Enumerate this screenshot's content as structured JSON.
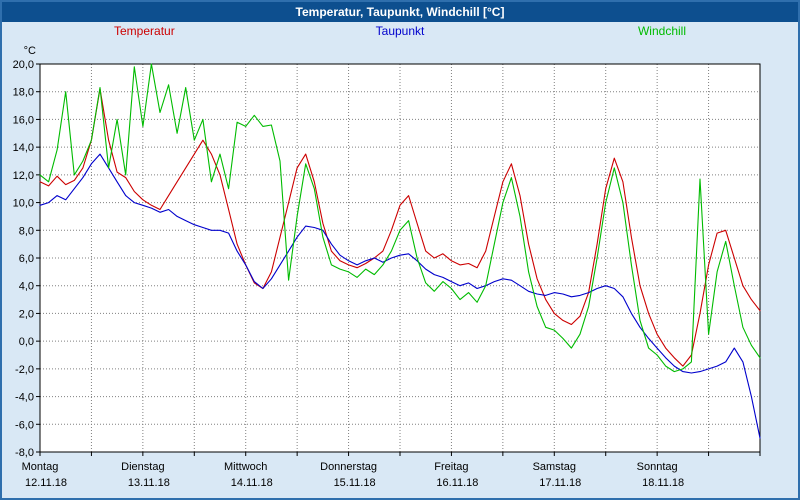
{
  "window": {
    "title": "Temperatur, Taupunkt, Windchill [°C]"
  },
  "chart_data": {
    "type": "line",
    "title": "Temperatur, Taupunkt, Windchill [°C]",
    "ylabel": "°C",
    "xlabel": "",
    "ylim": [
      -8,
      20
    ],
    "y_tick_step": 2,
    "y_tick_labels": [
      "20,0",
      "18,0",
      "16,0",
      "14,0",
      "12,0",
      "10,0",
      "8,0",
      "6,0",
      "4,0",
      "2,0",
      "0,0",
      "-2,0",
      "-4,0",
      "-6,0",
      "-8,0"
    ],
    "x_hours_total": 168,
    "x_gridline_hours": 12,
    "x_start": 0,
    "x_step": 2,
    "grid": "dotted",
    "legend_position": "top",
    "background_color": "#d9e8f5",
    "titlebar_color": "#0d4f8f",
    "days": [
      {
        "label": "Montag",
        "date": "12.11.18"
      },
      {
        "label": "Dienstag",
        "date": "13.11.18"
      },
      {
        "label": "Mittwoch",
        "date": "14.11.18"
      },
      {
        "label": "Donnerstag",
        "date": "15.11.18"
      },
      {
        "label": "Freitag",
        "date": "16.11.18"
      },
      {
        "label": "Samstag",
        "date": "17.11.18"
      },
      {
        "label": "Sonntag",
        "date": "18.11.18"
      }
    ],
    "series": [
      {
        "name": "Temperatur",
        "color": "#cc0000",
        "values": [
          11.5,
          11.2,
          11.9,
          11.3,
          11.6,
          12.5,
          14.5,
          18.2,
          14.5,
          12.2,
          11.8,
          10.8,
          10.2,
          9.8,
          9.5,
          10.5,
          11.5,
          12.5,
          13.5,
          14.5,
          13.5,
          12.0,
          9.5,
          7.0,
          5.5,
          4.2,
          3.8,
          5.0,
          7.5,
          10.0,
          12.5,
          13.5,
          11.5,
          8.5,
          6.5,
          5.8,
          5.5,
          5.3,
          5.6,
          6.0,
          6.5,
          8.0,
          9.8,
          10.5,
          8.5,
          6.5,
          6.0,
          6.3,
          5.8,
          5.5,
          5.6,
          5.3,
          6.5,
          9.0,
          11.5,
          12.8,
          10.5,
          7.0,
          4.5,
          3.0,
          2.0,
          1.5,
          1.2,
          1.8,
          3.5,
          7.0,
          11.0,
          13.2,
          11.5,
          7.5,
          4.0,
          2.0,
          0.5,
          -0.5,
          -1.2,
          -1.8,
          -1.0,
          2.0,
          5.5,
          7.8,
          8.0,
          6.0,
          4.0,
          3.0,
          2.2
        ]
      },
      {
        "name": "Taupunkt",
        "color": "#0000cc",
        "values": [
          9.8,
          10.0,
          10.5,
          10.2,
          11.0,
          11.8,
          12.8,
          13.5,
          12.5,
          11.5,
          10.5,
          10.0,
          9.8,
          9.6,
          9.3,
          9.5,
          9.0,
          8.7,
          8.4,
          8.2,
          8.0,
          8.0,
          7.8,
          6.5,
          5.5,
          4.3,
          3.8,
          4.5,
          5.5,
          6.5,
          7.5,
          8.3,
          8.2,
          8.0,
          7.0,
          6.2,
          5.8,
          5.5,
          5.8,
          6.0,
          5.7,
          6.0,
          6.2,
          6.3,
          5.8,
          5.2,
          4.8,
          4.6,
          4.3,
          4.0,
          4.2,
          3.8,
          4.0,
          4.3,
          4.5,
          4.4,
          4.0,
          3.6,
          3.4,
          3.3,
          3.5,
          3.4,
          3.2,
          3.3,
          3.5,
          3.8,
          4.0,
          3.8,
          3.2,
          2.0,
          1.0,
          0.2,
          -0.5,
          -1.2,
          -1.8,
          -2.2,
          -2.3,
          -2.2,
          -2.0,
          -1.8,
          -1.5,
          -0.5,
          -1.5,
          -4.0,
          -7.0
        ]
      },
      {
        "name": "Windchill",
        "color": "#00bb00",
        "values": [
          12.0,
          11.5,
          13.8,
          18.0,
          12.0,
          13.0,
          14.5,
          18.3,
          12.5,
          16.0,
          12.0,
          19.8,
          15.5,
          20.0,
          16.5,
          18.5,
          15.0,
          18.3,
          14.5,
          16.0,
          11.5,
          13.5,
          11.0,
          15.8,
          15.5,
          16.3,
          15.5,
          15.6,
          13.0,
          4.4,
          9.0,
          12.8,
          11.0,
          7.5,
          5.5,
          5.2,
          5.0,
          4.6,
          5.2,
          4.8,
          5.5,
          6.5,
          8.0,
          8.7,
          6.0,
          4.2,
          3.6,
          4.3,
          3.8,
          3.0,
          3.5,
          2.8,
          4.0,
          7.0,
          10.0,
          11.8,
          9.0,
          5.0,
          2.5,
          1.0,
          0.8,
          0.2,
          -0.5,
          0.5,
          2.5,
          6.0,
          10.0,
          12.5,
          10.0,
          5.5,
          1.5,
          -0.5,
          -1.0,
          -1.8,
          -2.2,
          -2.0,
          -1.5,
          11.7,
          0.5,
          5.0,
          7.2,
          4.0,
          1.0,
          -0.3,
          -1.2
        ]
      }
    ]
  }
}
